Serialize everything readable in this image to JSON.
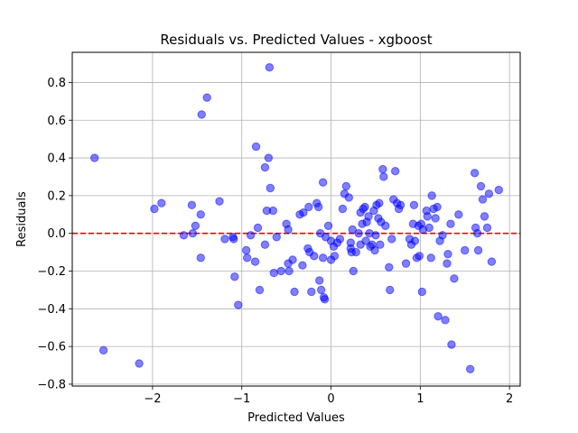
{
  "chart_data": {
    "type": "scatter",
    "title": "Residuals vs. Predicted Values - xgboost",
    "xlabel": "Predicted Values",
    "ylabel": "Residuals",
    "xlim": [
      -2.9,
      2.12
    ],
    "ylim": [
      -0.81,
      0.96
    ],
    "xticks": [
      -2,
      -1,
      0,
      1,
      2
    ],
    "xtick_labels": [
      "−2",
      "−1",
      "0",
      "1",
      "2"
    ],
    "yticks": [
      -0.8,
      -0.6,
      -0.4,
      -0.2,
      0.0,
      0.2,
      0.4,
      0.6,
      0.8
    ],
    "ytick_labels": [
      "−0.8",
      "−0.6",
      "−0.4",
      "−0.2",
      "0.0",
      "0.2",
      "0.4",
      "0.6",
      "0.8"
    ],
    "grid": true,
    "reference_line": {
      "y": 0,
      "color": "#ff0000",
      "style": "dashed"
    },
    "point_color": "#0000ff",
    "series": [
      {
        "points": [
          [
            -2.65,
            0.4
          ],
          [
            -2.55,
            -0.62
          ],
          [
            -2.15,
            -0.69
          ],
          [
            -1.98,
            0.13
          ],
          [
            -1.9,
            0.16
          ],
          [
            -1.65,
            -0.01
          ],
          [
            -1.56,
            0.15
          ],
          [
            -1.55,
            0.0
          ],
          [
            -1.52,
            0.04
          ],
          [
            -1.46,
            0.1
          ],
          [
            -1.46,
            -0.13
          ],
          [
            -1.45,
            0.63
          ],
          [
            -1.39,
            0.72
          ],
          [
            -1.25,
            0.17
          ],
          [
            -1.19,
            -0.03
          ],
          [
            -1.1,
            -0.02
          ],
          [
            -1.09,
            -0.03
          ],
          [
            -1.08,
            -0.23
          ],
          [
            -1.04,
            -0.38
          ],
          [
            -0.95,
            -0.09
          ],
          [
            -0.94,
            -0.13
          ],
          [
            -0.9,
            -0.01
          ],
          [
            -0.85,
            -0.15
          ],
          [
            -0.84,
            0.46
          ],
          [
            -0.82,
            0.03
          ],
          [
            -0.8,
            -0.3
          ],
          [
            -0.74,
            -0.06
          ],
          [
            -0.74,
            0.35
          ],
          [
            -0.72,
            0.12
          ],
          [
            -0.7,
            0.4
          ],
          [
            -0.69,
            0.88
          ],
          [
            -0.68,
            0.24
          ],
          [
            -0.65,
            0.12
          ],
          [
            -0.64,
            -0.21
          ],
          [
            -0.61,
            -0.02
          ],
          [
            -0.56,
            -0.2
          ],
          [
            -0.5,
            0.05
          ],
          [
            -0.48,
            0.02
          ],
          [
            -0.48,
            -0.16
          ],
          [
            -0.47,
            -0.2
          ],
          [
            -0.43,
            -0.14
          ],
          [
            -0.41,
            -0.31
          ],
          [
            -0.35,
            0.1
          ],
          [
            -0.32,
            -0.17
          ],
          [
            -0.31,
            0.11
          ],
          [
            -0.26,
            -0.08
          ],
          [
            -0.25,
            0.14
          ],
          [
            -0.24,
            -0.1
          ],
          [
            -0.22,
            -0.31
          ],
          [
            -0.19,
            -0.12
          ],
          [
            -0.16,
            0.16
          ],
          [
            -0.14,
            0.14
          ],
          [
            -0.13,
            -0.25
          ],
          [
            -0.12,
            0.0
          ],
          [
            -0.11,
            -0.3
          ],
          [
            -0.09,
            0.27
          ],
          [
            -0.09,
            -0.13
          ],
          [
            -0.08,
            -0.34
          ],
          [
            -0.07,
            -0.35
          ],
          [
            -0.06,
            -0.02
          ],
          [
            -0.03,
            0.04
          ],
          [
            0.0,
            -0.04
          ],
          [
            0.0,
            -0.14
          ],
          [
            0.03,
            -0.07
          ],
          [
            0.04,
            -0.12
          ],
          [
            0.07,
            -0.05
          ],
          [
            0.1,
            -0.03
          ],
          [
            0.13,
            0.13
          ],
          [
            0.15,
            0.21
          ],
          [
            0.17,
            0.25
          ],
          [
            0.2,
            0.19
          ],
          [
            0.22,
            -0.05
          ],
          [
            0.22,
            -0.08
          ],
          [
            0.23,
            -0.1
          ],
          [
            0.24,
            0.02
          ],
          [
            0.25,
            -0.2
          ],
          [
            0.28,
            -0.1
          ],
          [
            0.31,
            0.0
          ],
          [
            0.33,
            0.11
          ],
          [
            0.33,
            -0.06
          ],
          [
            0.35,
            0.05
          ],
          [
            0.36,
            0.13
          ],
          [
            0.38,
            0.14
          ],
          [
            0.39,
            -0.04
          ],
          [
            0.4,
            0.06
          ],
          [
            0.42,
            0.09
          ],
          [
            0.43,
            0.0
          ],
          [
            0.44,
            -0.07
          ],
          [
            0.46,
            -0.06
          ],
          [
            0.48,
            0.12
          ],
          [
            0.49,
            -0.09
          ],
          [
            0.5,
            -0.01
          ],
          [
            0.51,
            0.15
          ],
          [
            0.53,
            0.08
          ],
          [
            0.54,
            0.16
          ],
          [
            0.55,
            -0.06
          ],
          [
            0.56,
            0.06
          ],
          [
            0.58,
            0.34
          ],
          [
            0.59,
            0.3
          ],
          [
            0.61,
            0.04
          ],
          [
            0.65,
            -0.18
          ],
          [
            0.66,
            -0.3
          ],
          [
            0.68,
            -0.03
          ],
          [
            0.7,
            0.18
          ],
          [
            0.72,
            0.33
          ],
          [
            0.74,
            0.16
          ],
          [
            0.76,
            0.13
          ],
          [
            0.78,
            0.15
          ],
          [
            0.84,
            -0.16
          ],
          [
            0.88,
            -0.03
          ],
          [
            0.9,
            -0.06
          ],
          [
            0.92,
            0.05
          ],
          [
            0.93,
            0.15
          ],
          [
            0.94,
            -0.04
          ],
          [
            0.96,
            -0.13
          ],
          [
            0.98,
            0.04
          ],
          [
            0.99,
            -0.12
          ],
          [
            1.01,
            0.05
          ],
          [
            1.02,
            -0.31
          ],
          [
            1.03,
            0.02
          ],
          [
            1.07,
            0.12
          ],
          [
            1.08,
            0.09
          ],
          [
            1.1,
            0.03
          ],
          [
            1.12,
            -0.13
          ],
          [
            1.13,
            0.2
          ],
          [
            1.15,
            0.13
          ],
          [
            1.17,
            0.08
          ],
          [
            1.19,
            0.14
          ],
          [
            1.2,
            -0.44
          ],
          [
            1.22,
            -0.04
          ],
          [
            1.25,
            -0.01
          ],
          [
            1.28,
            -0.46
          ],
          [
            1.3,
            -0.16
          ],
          [
            1.31,
            -0.11
          ],
          [
            1.34,
            0.05
          ],
          [
            1.35,
            -0.59
          ],
          [
            1.38,
            -0.24
          ],
          [
            1.43,
            0.1
          ],
          [
            1.5,
            -0.09
          ],
          [
            1.56,
            -0.72
          ],
          [
            1.61,
            0.32
          ],
          [
            1.62,
            0.03
          ],
          [
            1.64,
            0.0
          ],
          [
            1.65,
            -0.09
          ],
          [
            1.68,
            0.25
          ],
          [
            1.7,
            0.18
          ],
          [
            1.72,
            0.09
          ],
          [
            1.75,
            0.03
          ],
          [
            1.77,
            0.21
          ],
          [
            1.8,
            -0.15
          ],
          [
            1.88,
            0.23
          ]
        ]
      }
    ]
  }
}
